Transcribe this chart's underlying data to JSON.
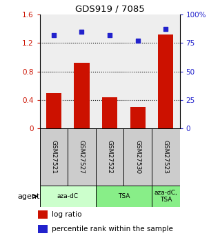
{
  "title": "GDS919 / 7085",
  "samples": [
    "GSM27521",
    "GSM27527",
    "GSM27522",
    "GSM27530",
    "GSM27523"
  ],
  "log_ratio": [
    0.5,
    0.92,
    0.44,
    0.3,
    1.32
  ],
  "percentile": [
    82,
    85,
    82,
    77,
    87
  ],
  "bar_color": "#cc1100",
  "dot_color": "#2222cc",
  "ylim_left": [
    0,
    1.6
  ],
  "ylim_right": [
    0,
    100
  ],
  "yticks_left": [
    0,
    0.4,
    0.8,
    1.2,
    1.6
  ],
  "ytick_labels_left": [
    "0",
    "0.4",
    "0.8",
    "1.2",
    "1.6"
  ],
  "ytick_labels_right": [
    "0",
    "25",
    "50",
    "75",
    "100%"
  ],
  "groups": [
    {
      "label": "aza-dC",
      "indices": [
        0,
        1
      ],
      "color": "#ccffcc"
    },
    {
      "label": "TSA",
      "indices": [
        2,
        3
      ],
      "color": "#88ee88"
    },
    {
      "label": "aza-dC,\nTSA",
      "indices": [
        4
      ],
      "color": "#88ee88"
    }
  ],
  "legend_items": [
    {
      "color": "#cc1100",
      "label": "log ratio"
    },
    {
      "color": "#2222cc",
      "label": "percentile rank within the sample"
    }
  ],
  "bg_plot": "#eeeeee",
  "bg_sample_row": "#cccccc",
  "agent_label": "agent"
}
